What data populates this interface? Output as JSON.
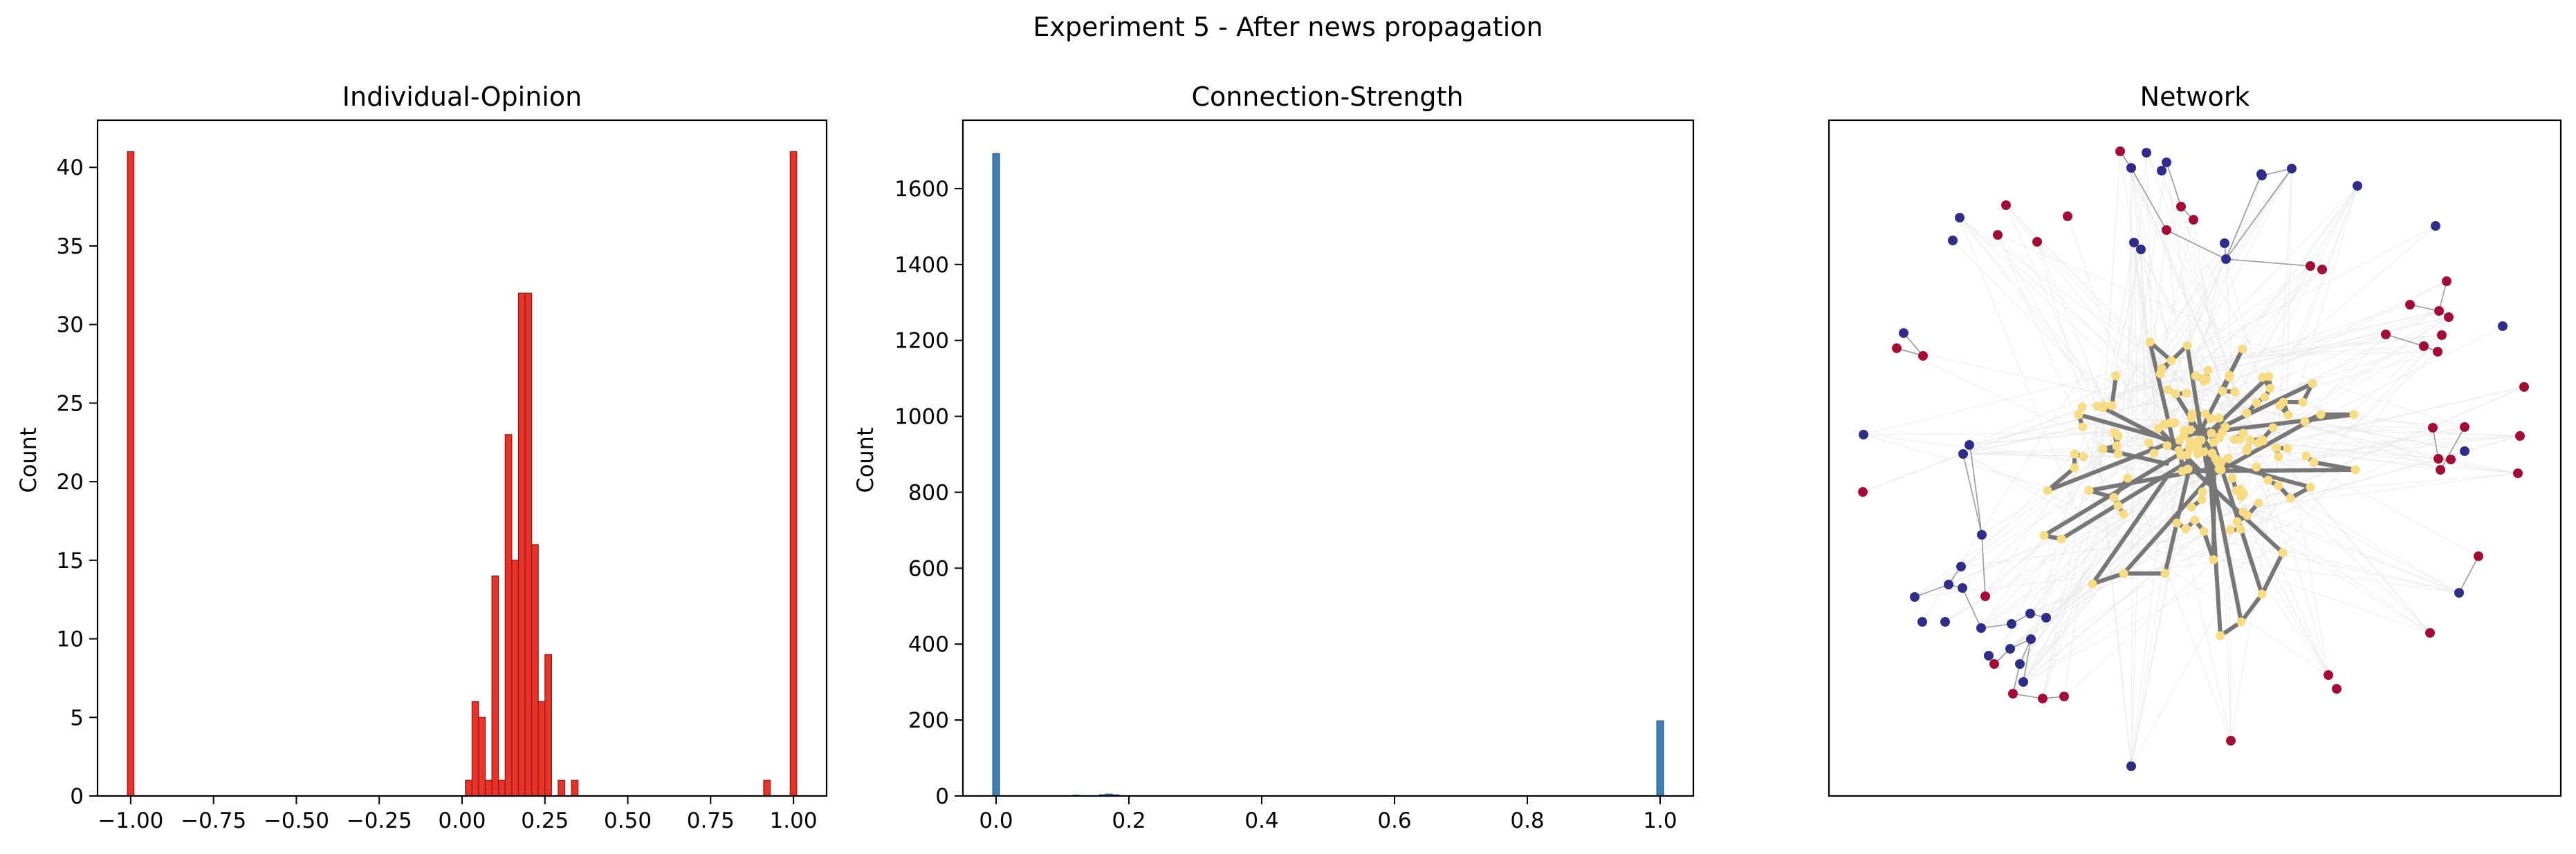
{
  "figure": {
    "suptitle": "Experiment 5 - After news propagation"
  },
  "colors": {
    "opinion_bar": "#e8322a",
    "opinion_edge": "#8a1a14",
    "strength_bar": "#3c80b6",
    "strength_edge": "#1f4e73",
    "node_blue": "#2e2e8a",
    "node_red": "#a50c35",
    "node_yellow": "#f8dc84",
    "edge_thick": "#777777",
    "edge_thin": "#999999",
    "faint": "#e6e6e6"
  },
  "chart_data": [
    {
      "type": "bar",
      "title": "Individual-Opinion",
      "xlabel": "",
      "ylabel": "Count",
      "xlim": [
        -1.1,
        1.1
      ],
      "ylim": [
        0,
        43
      ],
      "xticks": [
        -1.0,
        -0.75,
        -0.5,
        -0.25,
        0.0,
        0.25,
        0.5,
        0.75,
        1.0
      ],
      "xtick_labels": [
        "−1.00",
        "−0.75",
        "−0.50",
        "−0.25",
        "0.00",
        "0.25",
        "0.50",
        "0.75",
        "1.00"
      ],
      "yticks": [
        0,
        5,
        10,
        15,
        20,
        25,
        30,
        35,
        40
      ],
      "ytick_labels": [
        "0",
        "5",
        "10",
        "15",
        "20",
        "25",
        "30",
        "35",
        "40"
      ],
      "bin_width": 0.02,
      "bins": [
        {
          "x": -1.0,
          "count": 41
        },
        {
          "x": 0.02,
          "count": 1
        },
        {
          "x": 0.04,
          "count": 6
        },
        {
          "x": 0.06,
          "count": 5
        },
        {
          "x": 0.08,
          "count": 1
        },
        {
          "x": 0.1,
          "count": 14
        },
        {
          "x": 0.12,
          "count": 1
        },
        {
          "x": 0.14,
          "count": 23
        },
        {
          "x": 0.16,
          "count": 15
        },
        {
          "x": 0.18,
          "count": 32
        },
        {
          "x": 0.2,
          "count": 32
        },
        {
          "x": 0.22,
          "count": 16
        },
        {
          "x": 0.24,
          "count": 6
        },
        {
          "x": 0.26,
          "count": 9
        },
        {
          "x": 0.3,
          "count": 1
        },
        {
          "x": 0.34,
          "count": 1
        },
        {
          "x": 0.92,
          "count": 1
        },
        {
          "x": 1.0,
          "count": 41
        }
      ],
      "grid": false
    },
    {
      "type": "bar",
      "title": "Connection-Strength",
      "xlabel": "",
      "ylabel": "Count",
      "xlim": [
        -0.05,
        1.05
      ],
      "ylim": [
        0,
        1780
      ],
      "xticks": [
        0.0,
        0.2,
        0.4,
        0.6,
        0.8,
        1.0
      ],
      "xtick_labels": [
        "0.0",
        "0.2",
        "0.4",
        "0.6",
        "0.8",
        "1.0"
      ],
      "yticks": [
        0,
        200,
        400,
        600,
        800,
        1000,
        1200,
        1400,
        1600
      ],
      "ytick_labels": [
        "0",
        "200",
        "400",
        "600",
        "800",
        "1000",
        "1200",
        "1400",
        "1600"
      ],
      "bin_width": 0.01,
      "bins": [
        {
          "x": 0.0,
          "count": 1692
        },
        {
          "x": 0.12,
          "count": 2
        },
        {
          "x": 0.16,
          "count": 3
        },
        {
          "x": 0.17,
          "count": 5
        },
        {
          "x": 0.18,
          "count": 3
        },
        {
          "x": 1.0,
          "count": 198
        }
      ],
      "grid": false
    }
  ],
  "network": {
    "title": "Network"
  }
}
